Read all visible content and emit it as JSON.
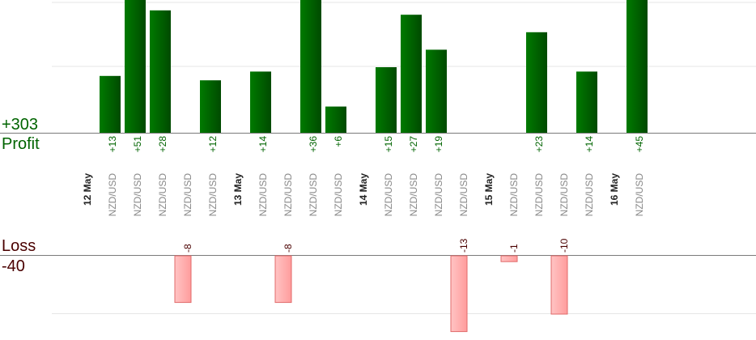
{
  "chart_data": {
    "type": "bar",
    "profit": {
      "label": "Profit",
      "total": "+303"
    },
    "loss": {
      "label": "Loss",
      "total": "-40"
    },
    "colors": {
      "profit": "#006400",
      "loss": "#ffb0b0",
      "loss_border": "#e06a6a",
      "date_label": "#222222",
      "pair_label": "#888888"
    },
    "columns": [
      {
        "kind": "date",
        "label": "12 May"
      },
      {
        "kind": "trade",
        "pair": "NZD/USD",
        "value": 13,
        "label": "+13"
      },
      {
        "kind": "trade",
        "pair": "NZD/USD",
        "value": 51,
        "label": "+51"
      },
      {
        "kind": "trade",
        "pair": "NZD/USD",
        "value": 28,
        "label": "+28"
      },
      {
        "kind": "trade",
        "pair": "NZD/USD",
        "value": -8,
        "label": "-8"
      },
      {
        "kind": "trade",
        "pair": "NZD/USD",
        "value": 12,
        "label": "+12"
      },
      {
        "kind": "date",
        "label": "13 May"
      },
      {
        "kind": "trade",
        "pair": "NZD/USD",
        "value": 14,
        "label": "+14"
      },
      {
        "kind": "trade",
        "pair": "NZD/USD",
        "value": -8,
        "label": "-8"
      },
      {
        "kind": "trade",
        "pair": "NZD/USD",
        "value": 36,
        "label": "+36"
      },
      {
        "kind": "trade",
        "pair": "NZD/USD",
        "value": 6,
        "label": "+6"
      },
      {
        "kind": "date",
        "label": "14 May"
      },
      {
        "kind": "trade",
        "pair": "NZD/USD",
        "value": 15,
        "label": "+15"
      },
      {
        "kind": "trade",
        "pair": "NZD/USD",
        "value": 27,
        "label": "+27"
      },
      {
        "kind": "trade",
        "pair": "NZD/USD",
        "value": 19,
        "label": "+19"
      },
      {
        "kind": "trade",
        "pair": "NZD/USD",
        "value": -13,
        "label": "-13"
      },
      {
        "kind": "date",
        "label": "15 May"
      },
      {
        "kind": "trade",
        "pair": "NZD/USD",
        "value": -1,
        "label": "-1"
      },
      {
        "kind": "trade",
        "pair": "NZD/USD",
        "value": 23,
        "label": "+23"
      },
      {
        "kind": "trade",
        "pair": "NZD/USD",
        "value": -10,
        "label": "-10"
      },
      {
        "kind": "trade",
        "pair": "NZD/USD",
        "value": 14,
        "label": "+14"
      },
      {
        "kind": "date",
        "label": "16 May"
      },
      {
        "kind": "trade",
        "pair": "NZD/USD",
        "value": 45,
        "label": "+45"
      }
    ]
  }
}
